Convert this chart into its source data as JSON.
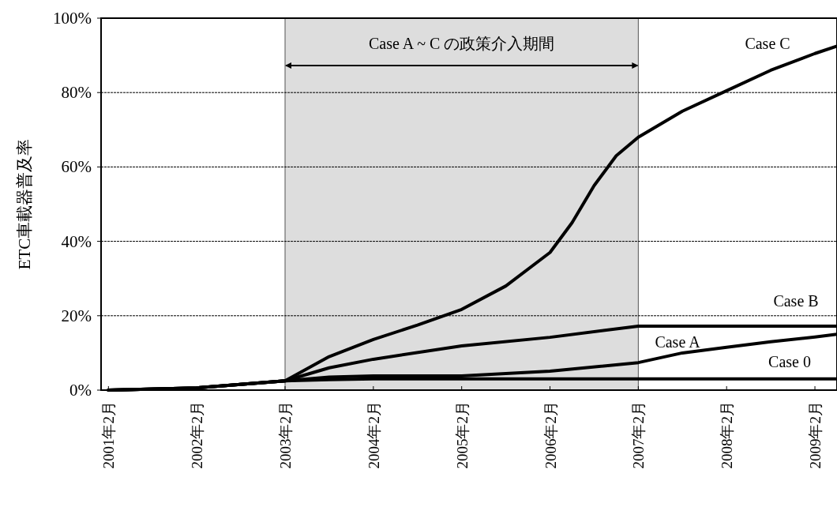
{
  "chart_data": {
    "type": "line",
    "ylabel": "ETC車載器普及率",
    "xlim": [
      "2001-01",
      "2009-05"
    ],
    "xticks": [
      {
        "value": "2001-02",
        "label": "2001年2月"
      },
      {
        "value": "2002-02",
        "label": "2002年2月"
      },
      {
        "value": "2003-02",
        "label": "2003年2月"
      },
      {
        "value": "2004-02",
        "label": "2004年2月"
      },
      {
        "value": "2005-02",
        "label": "2005年2月"
      },
      {
        "value": "2006-02",
        "label": "2006年2月"
      },
      {
        "value": "2007-02",
        "label": "2007年2月"
      },
      {
        "value": "2008-02",
        "label": "2008年2月"
      },
      {
        "value": "2009-02",
        "label": "2009年2月"
      }
    ],
    "ylim": [
      0,
      100
    ],
    "yticks": [
      {
        "value": 0,
        "label": "0%"
      },
      {
        "value": 20,
        "label": "20%"
      },
      {
        "value": 40,
        "label": "40%"
      },
      {
        "value": 60,
        "label": "60%"
      },
      {
        "value": 80,
        "label": "80%"
      },
      {
        "value": 100,
        "label": "100%"
      }
    ],
    "grid": "y",
    "marker": "none",
    "line_style": "solid",
    "bands": [
      {
        "axis": "x",
        "from": "2003-02",
        "to": "2007-02",
        "label": "Case A ~ C の政策介入期間",
        "color": "#dddddd"
      }
    ],
    "series": [
      {
        "name": "Case 0",
        "color": "#000000",
        "x": [
          "2001-02",
          "2002-02",
          "2003-02",
          "2003-08",
          "2004-02",
          "2009-05"
        ],
        "values": [
          0,
          0.6,
          2.5,
          2.8,
          3,
          3
        ]
      },
      {
        "name": "Case A",
        "color": "#000000",
        "x": [
          "2001-02",
          "2002-02",
          "2003-02",
          "2003-08",
          "2004-02",
          "2005-02",
          "2006-02",
          "2007-02",
          "2007-08",
          "2008-02",
          "2008-08",
          "2009-02",
          "2009-05"
        ],
        "values": [
          0,
          0.6,
          2.5,
          3.5,
          3.8,
          3.8,
          5.1,
          7.4,
          10,
          11.5,
          13,
          14.3,
          15
        ]
      },
      {
        "name": "Case B",
        "color": "#000000",
        "x": [
          "2001-02",
          "2002-02",
          "2003-02",
          "2003-08",
          "2004-02",
          "2005-02",
          "2006-02",
          "2007-02",
          "2009-05"
        ],
        "values": [
          0,
          0.6,
          2.5,
          6,
          8.3,
          11.9,
          14.2,
          17.2,
          17.2
        ]
      },
      {
        "name": "Case C",
        "color": "#000000",
        "x": [
          "2001-02",
          "2002-02",
          "2003-02",
          "2003-08",
          "2004-02",
          "2004-08",
          "2005-02",
          "2005-08",
          "2006-02",
          "2006-05",
          "2006-08",
          "2006-11",
          "2007-02",
          "2007-08",
          "2008-02",
          "2008-08",
          "2009-02",
          "2009-05"
        ],
        "values": [
          0,
          0.6,
          2.5,
          9,
          13.6,
          17.5,
          21.7,
          28,
          37,
          45,
          55,
          63,
          68,
          75,
          80.5,
          86,
          90.5,
          92.5
        ]
      }
    ]
  }
}
